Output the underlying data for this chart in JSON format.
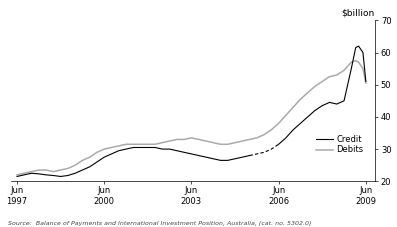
{
  "title": "",
  "ylabel_right": "$billion",
  "ylim": [
    20,
    70
  ],
  "yticks": [
    20,
    30,
    40,
    50,
    60,
    70
  ],
  "source_text": "Source:  Balance of Payments and International Investment Position, Australia, (cat. no. 5302.0)",
  "legend_entries": [
    "Credit",
    "Debits"
  ],
  "credit_color": "#000000",
  "debits_color": "#aaaaaa",
  "background_color": "#ffffff",
  "xlim": [
    1997.3,
    2009.8
  ],
  "xtick_positions": [
    1997.5,
    2000.5,
    2003.5,
    2006.5,
    2009.5
  ],
  "xtick_labels": [
    "Jun\n1997",
    "Jun\n2000",
    "Jun\n2003",
    "Jun\n2006",
    "Jun\n2009"
  ],
  "credit_solid1": [
    [
      1997.5,
      21.5
    ],
    [
      1997.75,
      22.0
    ],
    [
      1998.0,
      22.5
    ],
    [
      1998.25,
      22.3
    ],
    [
      1998.5,
      22.0
    ],
    [
      1998.75,
      21.8
    ],
    [
      1999.0,
      21.5
    ],
    [
      1999.25,
      21.8
    ],
    [
      1999.5,
      22.5
    ],
    [
      1999.75,
      23.5
    ],
    [
      2000.0,
      24.5
    ],
    [
      2000.25,
      26.0
    ],
    [
      2000.5,
      27.5
    ],
    [
      2000.75,
      28.5
    ],
    [
      2001.0,
      29.5
    ],
    [
      2001.25,
      30.0
    ],
    [
      2001.5,
      30.5
    ],
    [
      2001.75,
      30.5
    ],
    [
      2002.0,
      30.5
    ],
    [
      2002.25,
      30.5
    ],
    [
      2002.5,
      30.0
    ],
    [
      2002.75,
      30.0
    ],
    [
      2003.0,
      29.5
    ],
    [
      2003.25,
      29.0
    ],
    [
      2003.5,
      28.5
    ],
    [
      2003.75,
      28.0
    ],
    [
      2004.0,
      27.5
    ],
    [
      2004.25,
      27.0
    ],
    [
      2004.5,
      26.5
    ],
    [
      2004.75,
      26.5
    ],
    [
      2005.0,
      27.0
    ],
    [
      2005.25,
      27.5
    ],
    [
      2005.5,
      28.0
    ]
  ],
  "credit_dashed": [
    [
      2005.5,
      28.0
    ],
    [
      2005.75,
      28.5
    ],
    [
      2006.0,
      29.0
    ],
    [
      2006.25,
      30.0
    ],
    [
      2006.5,
      31.5
    ]
  ],
  "credit_solid2": [
    [
      2006.5,
      31.5
    ],
    [
      2006.75,
      33.5
    ],
    [
      2007.0,
      36.0
    ],
    [
      2007.25,
      38.0
    ],
    [
      2007.5,
      40.0
    ],
    [
      2007.75,
      42.0
    ],
    [
      2008.0,
      43.5
    ],
    [
      2008.25,
      44.5
    ],
    [
      2008.5,
      44.0
    ],
    [
      2008.75,
      45.0
    ],
    [
      2009.0,
      55.0
    ],
    [
      2009.15,
      61.5
    ],
    [
      2009.25,
      62.0
    ],
    [
      2009.4,
      60.0
    ],
    [
      2009.5,
      51.0
    ]
  ],
  "debits_data": [
    [
      1997.5,
      22.0
    ],
    [
      1997.75,
      22.5
    ],
    [
      1998.0,
      23.0
    ],
    [
      1998.25,
      23.5
    ],
    [
      1998.5,
      23.5
    ],
    [
      1998.75,
      23.0
    ],
    [
      1999.0,
      23.5
    ],
    [
      1999.25,
      24.0
    ],
    [
      1999.5,
      25.0
    ],
    [
      1999.75,
      26.5
    ],
    [
      2000.0,
      27.5
    ],
    [
      2000.25,
      29.0
    ],
    [
      2000.5,
      30.0
    ],
    [
      2000.75,
      30.5
    ],
    [
      2001.0,
      31.0
    ],
    [
      2001.25,
      31.5
    ],
    [
      2001.5,
      31.5
    ],
    [
      2001.75,
      31.5
    ],
    [
      2002.0,
      31.5
    ],
    [
      2002.25,
      31.5
    ],
    [
      2002.5,
      32.0
    ],
    [
      2002.75,
      32.5
    ],
    [
      2003.0,
      33.0
    ],
    [
      2003.25,
      33.0
    ],
    [
      2003.5,
      33.5
    ],
    [
      2003.75,
      33.0
    ],
    [
      2004.0,
      32.5
    ],
    [
      2004.25,
      32.0
    ],
    [
      2004.5,
      31.5
    ],
    [
      2004.75,
      31.5
    ],
    [
      2005.0,
      32.0
    ],
    [
      2005.25,
      32.5
    ],
    [
      2005.5,
      33.0
    ],
    [
      2005.75,
      33.5
    ],
    [
      2006.0,
      34.5
    ],
    [
      2006.25,
      36.0
    ],
    [
      2006.5,
      38.0
    ],
    [
      2006.75,
      40.5
    ],
    [
      2007.0,
      43.0
    ],
    [
      2007.25,
      45.5
    ],
    [
      2007.5,
      47.5
    ],
    [
      2007.75,
      49.5
    ],
    [
      2008.0,
      51.0
    ],
    [
      2008.25,
      52.5
    ],
    [
      2008.5,
      53.0
    ],
    [
      2008.75,
      54.5
    ],
    [
      2009.0,
      57.0
    ],
    [
      2009.15,
      57.5
    ],
    [
      2009.25,
      57.0
    ],
    [
      2009.4,
      55.0
    ],
    [
      2009.5,
      50.5
    ]
  ]
}
